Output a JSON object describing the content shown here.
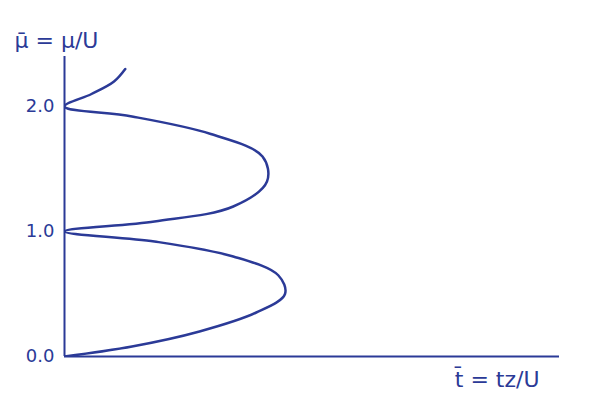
{
  "chart_data": {
    "type": "line",
    "x_label": "t̄ = tz/U",
    "y_label": "μ̄ = μ/U",
    "x": [
      0,
      0.3,
      0.6,
      0.85,
      0.98,
      0.95,
      0.75,
      0.4,
      0,
      0.4,
      0.75,
      0.9,
      0.88,
      0.65,
      0.3,
      0,
      0.12,
      0.22,
      0.27
    ],
    "values": [
      0,
      0.08,
      0.2,
      0.35,
      0.5,
      0.65,
      0.8,
      0.92,
      1,
      1.08,
      1.2,
      1.4,
      1.6,
      1.78,
      1.92,
      2,
      2.1,
      2.2,
      2.3
    ],
    "color": "#2b3a97",
    "xlim": [
      0,
      2.2
    ],
    "ylim": [
      0,
      2.4
    ],
    "yticks": [
      0,
      1,
      2
    ],
    "tick_labels": "y"
  }
}
